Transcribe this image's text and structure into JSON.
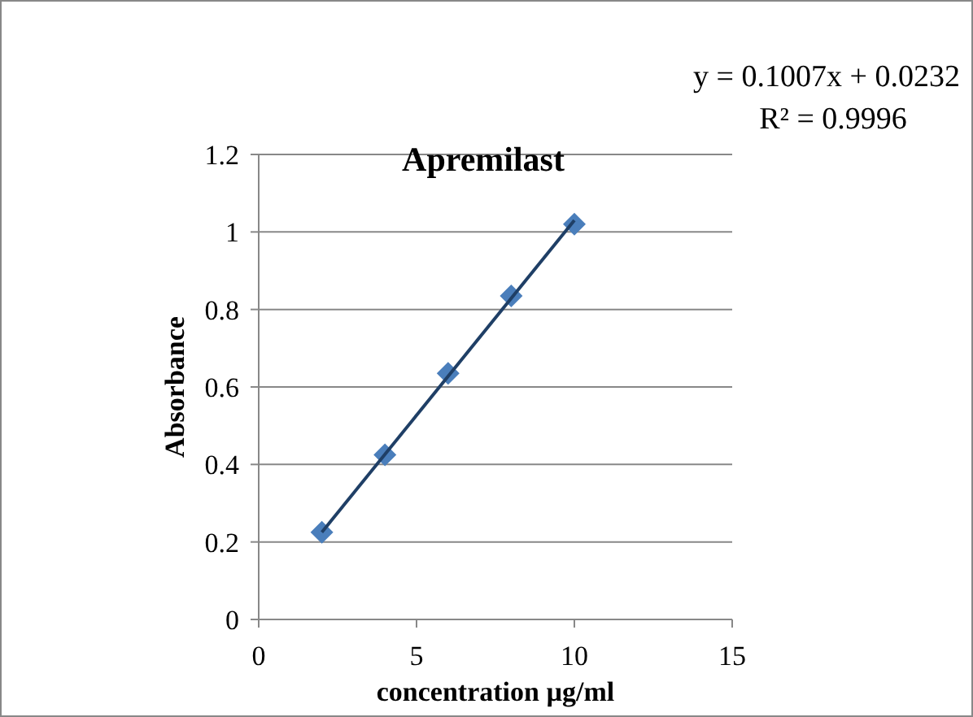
{
  "chart_data": {
    "type": "scatter",
    "title": "Apremilast",
    "xlabel": "concentration µg/ml",
    "ylabel": "Absorbance",
    "annotations": [
      "y = 0.1007x + 0.0232",
      "R² = 0.9996"
    ],
    "series": [
      {
        "color": "#4a7ebb",
        "x": [
          2,
          4,
          6,
          8,
          10
        ],
        "values": [
          0.225,
          0.425,
          0.635,
          0.835,
          1.02
        ],
        "marker": "diamond"
      },
      {
        "type": "line",
        "color": "#1f3f66",
        "x": [
          2,
          10
        ],
        "values": [
          0.225,
          1.03
        ],
        "marker": "none",
        "line_style": "solid"
      }
    ],
    "xlim": [
      0,
      15
    ],
    "xticks": [
      0,
      5,
      10,
      15
    ],
    "ylim": [
      0,
      1.2
    ],
    "yticks": [
      0,
      0.2,
      0.4,
      0.6,
      0.8,
      1,
      1.2
    ],
    "grid": "y"
  }
}
